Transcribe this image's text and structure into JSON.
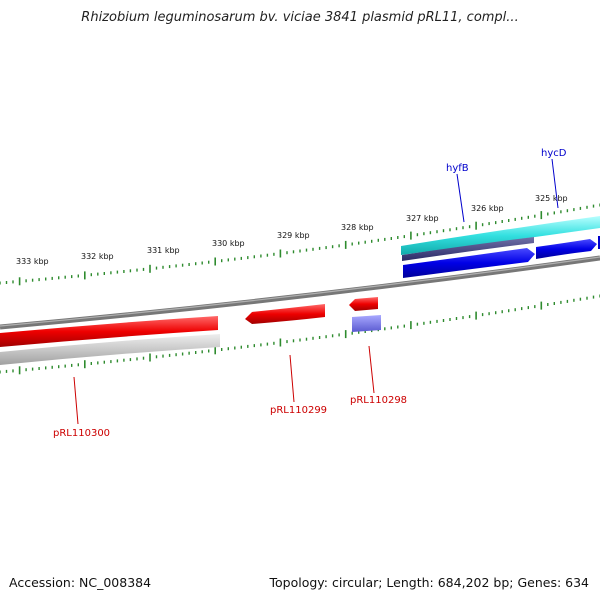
{
  "title": "Rhizobium leguminosarum bv. viciae 3841 plasmid pRL11, compl...",
  "footer": {
    "accession": "Accession: NC_008384",
    "topology": "Topology: circular; Length: 684,202 bp; Genes: 634"
  },
  "ticks": [
    "333 kbp",
    "332 kbp",
    "331 kbp",
    "330 kbp",
    "329 kbp",
    "328 kbp",
    "327 kbp",
    "326 kbp",
    "325 kbp"
  ],
  "genes": [
    {
      "name": "hyfB",
      "color": "#0000cc"
    },
    {
      "name": "hycD",
      "color": "#0000cc"
    },
    {
      "name": "pRL110298",
      "color": "#cc0000"
    },
    {
      "name": "pRL110299",
      "color": "#cc0000"
    },
    {
      "name": "pRL110300",
      "color": "#cc0000"
    }
  ],
  "colors": {
    "forward_feature": "#0000e6",
    "reverse_feature": "#ee0000",
    "rna_feature": "#33e0e0",
    "backbone": "#888888",
    "tick": "#2e8b2e"
  }
}
